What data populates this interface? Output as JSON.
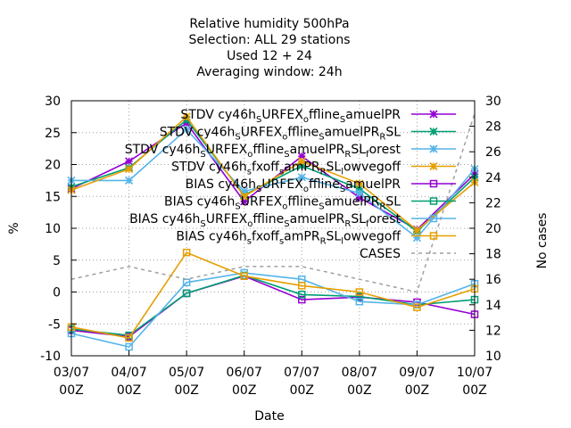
{
  "chart_data": {
    "type": "line",
    "title_lines": [
      "Relative humidity 500hPa",
      "Selection: ALL      29 stations",
      "Used  12 + 24",
      "Averaging window: 24h"
    ],
    "xlabel": "Date",
    "ylabel": "%",
    "y2label": "No cases",
    "x_tick_labels": [
      [
        "03/07",
        "00Z"
      ],
      [
        "04/07",
        "00Z"
      ],
      [
        "05/07",
        "00Z"
      ],
      [
        "06/07",
        "00Z"
      ],
      [
        "07/07",
        "00Z"
      ],
      [
        "08/07",
        "00Z"
      ],
      [
        "09/07",
        "00Z"
      ],
      [
        "10/07",
        "00Z"
      ]
    ],
    "y_ticks": [
      "-10",
      "-5",
      "0",
      "5",
      "10",
      "15",
      "20",
      "25",
      "30"
    ],
    "y2_ticks": [
      "10",
      "12",
      "14",
      "16",
      "18",
      "20",
      "22",
      "24",
      "26",
      "28",
      "30"
    ],
    "ylim": [
      -10,
      30
    ],
    "y2lim": [
      10,
      30
    ],
    "grid": true,
    "legend_position": "top-right",
    "series": [
      {
        "name": "STDV cy46h_S URFEX_o ffline_S amuelPR",
        "label_parts": [
          [
            "STDV cy46h",
            ""
          ],
          [
            "S",
            "sub"
          ],
          [
            "URFEX",
            ""
          ],
          [
            "o",
            "sub"
          ],
          [
            "ffline",
            ""
          ],
          [
            "S",
            "sub"
          ],
          [
            "amuelPR",
            ""
          ]
        ],
        "color": "#9400d3",
        "marker": "star",
        "dash": "",
        "axis": "y",
        "values": [
          16.2,
          20.5,
          26.5,
          14.2,
          21.3,
          14.8,
          9.8,
          18.5
        ]
      },
      {
        "name": "STDV cy46h_S URFEX_o ffline_S amuelPR_R SL",
        "label_parts": [
          [
            "STDV cy46h",
            ""
          ],
          [
            "S",
            "sub"
          ],
          [
            "URFEX",
            ""
          ],
          [
            "o",
            "sub"
          ],
          [
            "ffline",
            ""
          ],
          [
            "S",
            "sub"
          ],
          [
            "amuelPR",
            ""
          ],
          [
            "R",
            "sub"
          ],
          [
            "SL",
            ""
          ]
        ],
        "color": "#009e73",
        "marker": "star",
        "dash": "",
        "axis": "y",
        "values": [
          16.5,
          19.5,
          27.0,
          15.2,
          19.8,
          16.2,
          9.5,
          18.0
        ]
      },
      {
        "name": "STDV cy46h_S URFEX_o ffline_S amuelPR_R SL_f orest",
        "label_parts": [
          [
            "STDV cy46h",
            ""
          ],
          [
            "S",
            "sub"
          ],
          [
            "URFEX",
            ""
          ],
          [
            "o",
            "sub"
          ],
          [
            "ffline",
            ""
          ],
          [
            "S",
            "sub"
          ],
          [
            "amuelPR",
            ""
          ],
          [
            "R",
            "sub"
          ],
          [
            "SL",
            ""
          ],
          [
            "f",
            "sub"
          ],
          [
            "orest",
            ""
          ]
        ],
        "color": "#56b4e9",
        "marker": "star",
        "dash": "",
        "axis": "y",
        "values": [
          17.5,
          17.5,
          25.5,
          15.8,
          18.0,
          15.5,
          8.5,
          19.3
        ]
      },
      {
        "name": "STDV cy46h_s fxoff_s amPR_R SL_l owvegoff",
        "label_parts": [
          [
            "STDV cy46h",
            ""
          ],
          [
            "s",
            "sub"
          ],
          [
            "fxoff",
            ""
          ],
          [
            "s",
            "sub"
          ],
          [
            "amPR",
            ""
          ],
          [
            "R",
            "sub"
          ],
          [
            "SL",
            ""
          ],
          [
            "l",
            "sub"
          ],
          [
            "owvegoff",
            ""
          ]
        ],
        "color": "#e69f00",
        "marker": "star",
        "dash": "",
        "axis": "y",
        "values": [
          16.0,
          19.3,
          27.5,
          15.0,
          20.5,
          17.0,
          9.7,
          17.2
        ]
      },
      {
        "name": "BIAS cy46h_S URFEX_o ffline_S amuelPR",
        "label_parts": [
          [
            "BIAS cy46h",
            ""
          ],
          [
            "S",
            "sub"
          ],
          [
            "URFEX",
            ""
          ],
          [
            "o",
            "sub"
          ],
          [
            "ffline",
            ""
          ],
          [
            "S",
            "sub"
          ],
          [
            "amuelPR",
            ""
          ]
        ],
        "color": "#9400d3",
        "marker": "square",
        "dash": "",
        "axis": "y",
        "values": [
          -6.0,
          -7.0,
          -0.2,
          2.5,
          -1.2,
          -0.8,
          -1.6,
          -3.5
        ]
      },
      {
        "name": "BIAS cy46h_S URFEX_o ffline_S amuelPR_R SL",
        "label_parts": [
          [
            "BIAS cy46h",
            ""
          ],
          [
            "S",
            "sub"
          ],
          [
            "URFEX",
            ""
          ],
          [
            "o",
            "sub"
          ],
          [
            "ffline",
            ""
          ],
          [
            "S",
            "sub"
          ],
          [
            "amuelPR",
            ""
          ],
          [
            "R",
            "sub"
          ],
          [
            "SL",
            ""
          ]
        ],
        "color": "#009e73",
        "marker": "square",
        "dash": "",
        "axis": "y",
        "values": [
          -5.8,
          -6.8,
          -0.2,
          2.6,
          -0.4,
          -0.7,
          -2.0,
          -1.2
        ]
      },
      {
        "name": "BIAS cy46h_S URFEX_o ffline_S amuelPR_R SL_f orest",
        "label_parts": [
          [
            "BIAS cy46h",
            ""
          ],
          [
            "S",
            "sub"
          ],
          [
            "URFEX",
            ""
          ],
          [
            "o",
            "sub"
          ],
          [
            "ffline",
            ""
          ],
          [
            "S",
            "sub"
          ],
          [
            "amuelPR",
            ""
          ],
          [
            "R",
            "sub"
          ],
          [
            "SL",
            ""
          ],
          [
            "f",
            "sub"
          ],
          [
            "orest",
            ""
          ]
        ],
        "color": "#56b4e9",
        "marker": "square",
        "dash": "",
        "axis": "y",
        "values": [
          -6.5,
          -8.6,
          1.5,
          3.0,
          2.0,
          -1.5,
          -2.0,
          1.3
        ]
      },
      {
        "name": "BIAS cy46h_s fxoff_s amPR_R SL_l owvegoff",
        "label_parts": [
          [
            "BIAS cy46h",
            ""
          ],
          [
            "s",
            "sub"
          ],
          [
            "fxoff",
            ""
          ],
          [
            "s",
            "sub"
          ],
          [
            "amPR",
            ""
          ],
          [
            "R",
            "sub"
          ],
          [
            "SL",
            ""
          ],
          [
            "l",
            "sub"
          ],
          [
            "owvegoff",
            ""
          ]
        ],
        "color": "#e69f00",
        "marker": "square",
        "dash": "",
        "axis": "y",
        "values": [
          -5.5,
          -7.2,
          6.2,
          2.5,
          1.0,
          0.0,
          -2.4,
          0.5
        ]
      },
      {
        "name": "CASES",
        "label_parts": [
          [
            "CASES",
            ""
          ]
        ],
        "color": "#a0a0a0",
        "marker": "none",
        "dash": "4 4",
        "axis": "y2",
        "values": [
          16,
          17,
          16,
          17,
          17,
          16,
          15,
          29
        ]
      }
    ]
  }
}
